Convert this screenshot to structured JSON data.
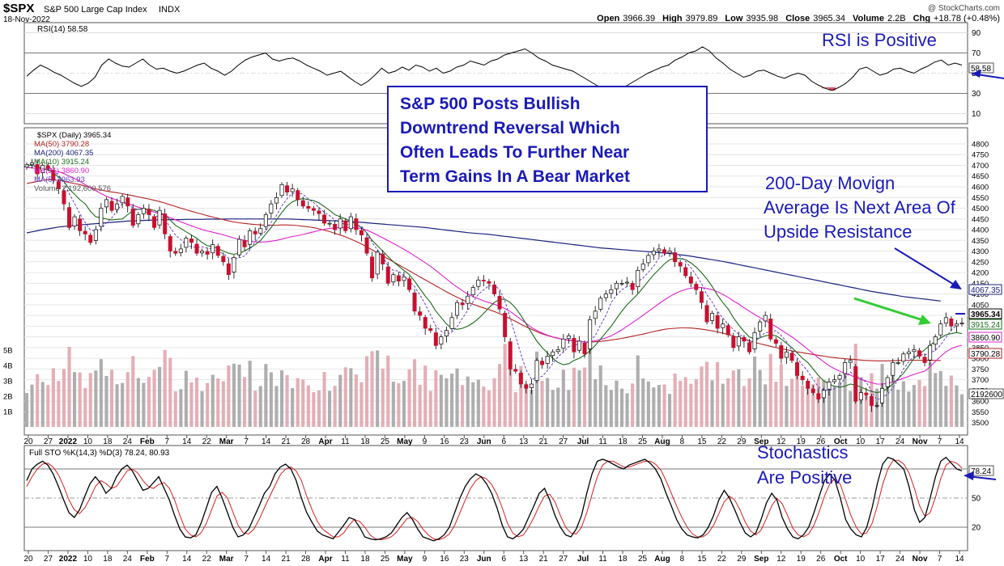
{
  "header": {
    "symbol": "$SPX",
    "name": "S&P 500 Large Cap Index",
    "exchange": "INDX",
    "date": "18-Nov-2022",
    "open_label": "Open",
    "open": "3966.39",
    "high_label": "High",
    "high": "3979.89",
    "low_label": "Low",
    "low": "3935.98",
    "close_label": "Close",
    "close": "3965.34",
    "volume_label": "Volume",
    "volume": "2.2B",
    "chg_label": "Chg",
    "chg": "+18.78 (+0.48%)",
    "watermark": "@ StockCharts.com"
  },
  "colors": {
    "up": "#ffffff",
    "down": "#c8102e",
    "ma50": "#b22222",
    "ma200": "#1a237e",
    "ma10": "#1b6b1b",
    "ma21": "#e020d0",
    "ma5": "#6a3fc7",
    "annotation": "#1a1ab8",
    "green_arrow": "#33cc33",
    "vol_up": "#a0a0a0",
    "vol_down": "#e0a0a8"
  },
  "rsi": {
    "label": "RSI(14) 58.58",
    "last": "58.58",
    "ticks": [
      "90",
      "70",
      "50",
      "30",
      "10"
    ],
    "levels": [
      90,
      70,
      50,
      30,
      10
    ],
    "values": [
      47,
      53,
      58,
      55,
      51,
      48,
      44,
      40,
      37,
      40,
      46,
      58,
      64,
      60,
      57,
      56,
      60,
      64,
      58,
      54,
      55,
      52,
      50,
      52,
      55,
      58,
      60,
      55,
      52,
      48,
      52,
      58,
      63,
      66,
      68,
      70,
      64,
      62,
      64,
      65,
      62,
      58,
      55,
      52,
      48,
      50,
      52,
      47,
      42,
      38,
      42,
      48,
      55,
      50,
      52,
      56,
      53,
      58,
      56,
      52,
      55,
      50,
      52,
      56,
      58,
      62,
      60,
      58,
      62,
      64,
      68,
      70,
      72,
      74,
      70,
      65,
      62,
      58,
      56,
      54,
      52,
      48,
      44,
      40,
      36,
      32,
      30,
      34,
      38,
      42,
      46,
      50,
      53,
      56,
      58,
      63,
      66,
      70,
      72,
      76,
      72,
      65,
      60,
      54,
      50,
      46,
      48,
      52,
      53,
      50,
      47,
      45,
      48,
      50,
      48,
      42,
      38,
      35,
      33,
      36,
      40,
      46,
      54,
      56,
      52,
      48,
      50,
      54,
      55,
      52,
      50,
      54,
      57,
      61,
      63,
      58,
      60,
      58
    ]
  },
  "price_panel": {
    "legend": [
      "$SPX (Daily) 3965.34",
      "MA(50) 3790.28",
      "MA(200) 4067.35",
      "MA(10) 3915.24",
      "MA(21) 3860.90",
      "MA(5) 3963.93",
      "Volume 2,192,600,576"
    ],
    "price_ticks": [
      "4800",
      "4750",
      "4700",
      "4650",
      "4600",
      "4550",
      "4500",
      "4450",
      "4400",
      "4350",
      "4300",
      "4250",
      "4200",
      "4150",
      "4100",
      "4050",
      "4000",
      "3950",
      "3900",
      "3850",
      "3800",
      "3750",
      "3700",
      "3650",
      "3600",
      "3550",
      "3500"
    ],
    "volume_ticks": [
      "5B",
      "4B",
      "3B",
      "2B",
      "1B"
    ],
    "value_labels": [
      "4067.35",
      "3965.34",
      "3915.24",
      "3860.90",
      "3790.28",
      "2192600"
    ]
  },
  "chart_data": {
    "type": "candlestick",
    "title": "$SPX S&P 500 Large Cap Index INDX (Daily)",
    "ylim": [
      3480,
      4830
    ],
    "volume_ylim_billions": [
      0,
      6.2
    ],
    "x_tick_labels": [
      "20",
      "27",
      "2022",
      "10",
      "18",
      "24",
      "Feb",
      "7",
      "14",
      "22",
      "Mar",
      "7",
      "14",
      "21",
      "28",
      "Apr",
      "11",
      "18",
      "25",
      "May",
      "9",
      "16",
      "23",
      "Jun",
      "6",
      "13",
      "21",
      "27",
      "Jul",
      "11",
      "18",
      "25",
      "Aug",
      "8",
      "15",
      "22",
      "29",
      "Sep",
      "12",
      "19",
      "26",
      "Oct",
      "10",
      "17",
      "24",
      "Nov",
      "7",
      "14"
    ],
    "close": [
      4702,
      4712,
      4660,
      4700,
      4685,
      4630,
      4590,
      4520,
      4410,
      4460,
      4395,
      4380,
      4340,
      4400,
      4500,
      4540,
      4490,
      4520,
      4555,
      4510,
      4420,
      4470,
      4500,
      4470,
      4410,
      4490,
      4380,
      4300,
      4290,
      4310,
      4360,
      4340,
      4290,
      4300,
      4285,
      4330,
      4280,
      4250,
      4190,
      4270,
      4355,
      4320,
      4395,
      4380,
      4405,
      4470,
      4520,
      4550,
      4610,
      4575,
      4590,
      4540,
      4510,
      4500,
      4490,
      4475,
      4430,
      4430,
      4400,
      4450,
      4395,
      4460,
      4400,
      4375,
      4290,
      4175,
      4295,
      4240,
      4150,
      4190,
      4160,
      4180,
      4120,
      4020,
      4000,
      3940,
      3930,
      3860,
      3900,
      3930,
      3990,
      4060,
      4050,
      4090,
      4130,
      4165,
      4160,
      4150,
      4100,
      4030,
      3900,
      3750,
      3740,
      3680,
      3660,
      3680,
      3790,
      3770,
      3810,
      3830,
      3840,
      3890,
      3905,
      3830,
      3880,
      3820,
      3980,
      4020,
      4080,
      4100,
      4120,
      4150,
      4150,
      4155,
      4120,
      4210,
      4240,
      4280,
      4300,
      4310,
      4290,
      4300,
      4250,
      4230,
      4185,
      4150,
      4120,
      4060,
      3970,
      4010,
      3940,
      3960,
      3910,
      3850,
      3900,
      3880,
      3830,
      3920,
      3970,
      4000,
      3890,
      3870,
      3800,
      3830,
      3790,
      3720,
      3700,
      3660,
      3640,
      3610,
      3650,
      3690,
      3700,
      3720,
      3780,
      3790,
      3600,
      3640,
      3630,
      3580,
      3580,
      3660,
      3710,
      3780,
      3780,
      3820,
      3830,
      3840,
      3810,
      3780,
      3860,
      3900,
      3960,
      3990,
      3950,
      3960,
      3965
    ],
    "ma50": [
      4615,
      4620,
      4625,
      4630,
      4633,
      4632,
      4630,
      4626,
      4620,
      4615,
      4610,
      4603,
      4596,
      4590,
      4585,
      4580,
      4576,
      4572,
      4568,
      4563,
      4558,
      4553,
      4548,
      4543,
      4537,
      4531,
      4524,
      4516,
      4508,
      4500,
      4493,
      4486,
      4479,
      4472,
      4465,
      4459,
      4453,
      4447,
      4441,
      4436,
      4432,
      4429,
      4426,
      4424,
      4422,
      4421,
      4421,
      4421,
      4422,
      4422,
      4421,
      4419,
      4416,
      4413,
      4409,
      4404,
      4398,
      4391,
      4383,
      4375,
      4366,
      4356,
      4345,
      4333,
      4320,
      4306,
      4292,
      4278,
      4264,
      4250,
      4236,
      4222,
      4208,
      4194,
      4180,
      4166,
      4152,
      4138,
      4124,
      4110,
      4097,
      4085,
      4073,
      4062,
      4052,
      4043,
      4035,
      4027,
      4018,
      4008,
      3997,
      3985,
      3972,
      3959,
      3947,
      3935,
      3924,
      3914,
      3906,
      3899,
      3893,
      3888,
      3884,
      3881,
      3878,
      3876,
      3876,
      3877,
      3879,
      3882,
      3885,
      3889,
      3893,
      3898,
      3903,
      3908,
      3913,
      3919,
      3925,
      3930,
      3935,
      3938,
      3940,
      3942,
      3942,
      3941,
      3939,
      3936,
      3932,
      3928,
      3923,
      3917,
      3911,
      3904,
      3897,
      3890,
      3882,
      3875,
      3868,
      3862,
      3856,
      3850,
      3845,
      3840,
      3835,
      3830,
      3826,
      3822,
      3818,
      3814,
      3810,
      3806,
      3803,
      3800,
      3798,
      3796,
      3794,
      3792,
      3790,
      3789,
      3788,
      3788,
      3788,
      3789,
      3790,
      3791,
      3791,
      3791,
      3791,
      3791,
      3790,
      3790,
      3790
    ],
    "ma200": [
      4385,
      4390,
      4395,
      4400,
      4404,
      4408,
      4412,
      4415,
      4418,
      4420,
      4422,
      4424,
      4426,
      4428,
      4430,
      4432,
      4434,
      4436,
      4438,
      4440,
      4441,
      4442,
      4443,
      4444,
      4445,
      4446,
      4446,
      4447,
      4447,
      4447,
      4448,
      4448,
      4448,
      4448,
      4449,
      4449,
      4449,
      4449,
      4450,
      4450,
      4450,
      4450,
      4450,
      4450,
      4450,
      4450,
      4450,
      4450,
      4450,
      4450,
      4449,
      4448,
      4447,
      4446,
      4445,
      4444,
      4443,
      4442,
      4441,
      4440,
      4439,
      4438,
      4436,
      4434,
      4432,
      4430,
      4428,
      4426,
      4424,
      4422,
      4420,
      4418,
      4416,
      4414,
      4412,
      4410,
      4407,
      4404,
      4401,
      4398,
      4395,
      4392,
      4389,
      4386,
      4384,
      4382,
      4380,
      4378,
      4375,
      4372,
      4369,
      4366,
      4363,
      4360,
      4357,
      4354,
      4351,
      4348,
      4345,
      4342,
      4339,
      4336,
      4333,
      4330,
      4327,
      4324,
      4321,
      4318,
      4315,
      4313,
      4311,
      4309,
      4307,
      4305,
      4303,
      4301,
      4299,
      4297,
      4295,
      4293,
      4291,
      4289,
      4286,
      4283,
      4280,
      4276,
      4272,
      4268,
      4264,
      4260,
      4256,
      4252,
      4247,
      4242,
      4237,
      4232,
      4227,
      4222,
      4217,
      4212,
      4207,
      4202,
      4197,
      4192,
      4187,
      4182,
      4177,
      4172,
      4167,
      4162,
      4157,
      4152,
      4147,
      4142,
      4137,
      4132,
      4127,
      4122,
      4117,
      4112,
      4108,
      4104,
      4100,
      4096,
      4092,
      4088,
      4085,
      4082,
      4079,
      4076,
      4073,
      4070,
      4067
    ],
    "ma21": [
      4690,
      4688,
      4686,
      4683,
      4680,
      4676,
      4670,
      4662,
      4650,
      4638,
      4625,
      4610,
      4596,
      4582,
      4568,
      4556,
      4546,
      4537,
      4529,
      4521,
      4513,
      4505,
      4497,
      4490,
      4482,
      4475,
      4466,
      4456,
      4446,
      4436,
      4427,
      4418,
      4409,
      4401,
      4394,
      4388,
      4382,
      4376,
      4368,
      4361,
      4355,
      4350,
      4346,
      4343,
      4342,
      4343,
      4346,
      4350,
      4356,
      4362,
      4368,
      4372,
      4378,
      4384,
      4390,
      4396,
      4402,
      4406,
      4408,
      4409,
      4410,
      4410,
      4409,
      4405,
      4398,
      4387,
      4375,
      4362,
      4349,
      4336,
      4322,
      4308,
      4294,
      4278,
      4262,
      4246,
      4229,
      4210,
      4190,
      4170,
      4150,
      4132,
      4115,
      4100,
      4088,
      4078,
      4068,
      4060,
      4052,
      4043,
      4032,
      4018,
      4000,
      3982,
      3963,
      3944,
      3930,
      3918,
      3908,
      3900,
      3894,
      3888,
      3885,
      3882,
      3880,
      3876,
      3878,
      3882,
      3888,
      3895,
      3905,
      3918,
      3933,
      3950,
      3966,
      3983,
      4001,
      4019,
      4037,
      4055,
      4072,
      4088,
      4102,
      4113,
      4121,
      4127,
      4130,
      4130,
      4126,
      4120,
      4110,
      4098,
      4084,
      4068,
      4053,
      4036,
      4020,
      4004,
      3990,
      3976,
      3962,
      3948,
      3932,
      3916,
      3900,
      3882,
      3862,
      3842,
      3822,
      3802,
      3784,
      3766,
      3752,
      3740,
      3730,
      3722,
      3710,
      3702,
      3694,
      3686,
      3680,
      3680,
      3683,
      3690,
      3698,
      3707,
      3716,
      3725,
      3733,
      3740,
      3760,
      3785,
      3810,
      3830,
      3845,
      3855,
      3861
    ],
    "ma10": [
      4700,
      4700,
      4690,
      4685,
      4680,
      4665,
      4645,
      4625,
      4590,
      4565,
      4540,
      4520,
      4485,
      4460,
      4455,
      4450,
      4445,
      4448,
      4450,
      4470,
      4490,
      4495,
      4495,
      4495,
      4490,
      4478,
      4470,
      4445,
      4420,
      4405,
      4390,
      4375,
      4360,
      4340,
      4325,
      4320,
      4312,
      4300,
      4290,
      4285,
      4290,
      4300,
      4315,
      4330,
      4350,
      4380,
      4410,
      4445,
      4480,
      4510,
      4530,
      4540,
      4545,
      4540,
      4535,
      4525,
      4508,
      4490,
      4470,
      4460,
      4450,
      4440,
      4425,
      4410,
      4385,
      4350,
      4325,
      4300,
      4275,
      4250,
      4230,
      4210,
      4190,
      4160,
      4125,
      4090,
      4060,
      4020,
      3990,
      3960,
      3940,
      3935,
      3940,
      3950,
      3965,
      3985,
      4010,
      4035,
      4060,
      4075,
      4075,
      4060,
      4035,
      4000,
      3960,
      3920,
      3880,
      3850,
      3825,
      3800,
      3780,
      3770,
      3775,
      3790,
      3800,
      3815,
      3835,
      3860,
      3890,
      3920,
      3950,
      3985,
      4020,
      4050,
      4075,
      4100,
      4130,
      4160,
      4190,
      4215,
      4240,
      4260,
      4265,
      4265,
      4260,
      4245,
      4225,
      4200,
      4170,
      4135,
      4095,
      4060,
      4030,
      3990,
      3955,
      3925,
      3900,
      3890,
      3895,
      3905,
      3910,
      3905,
      3890,
      3870,
      3850,
      3825,
      3800,
      3780,
      3750,
      3720,
      3695,
      3680,
      3670,
      3665,
      3670,
      3680,
      3675,
      3665,
      3655,
      3645,
      3640,
      3645,
      3660,
      3680,
      3705,
      3730,
      3765,
      3800,
      3820,
      3840,
      3860,
      3880,
      3895,
      3910,
      3915,
      3920,
      3915
    ],
    "stochastic": {
      "label": "Full STO %K(14,3) %D(3) 78.24, 80.93",
      "k_last": "78.24",
      "d_last": "80.93",
      "ticks": [
        "80",
        "50",
        "20"
      ],
      "levels": [
        80,
        50,
        20
      ],
      "k": [
        68,
        80,
        85,
        88,
        84,
        75,
        62,
        48,
        35,
        30,
        38,
        52,
        65,
        72,
        65,
        55,
        60,
        72,
        80,
        84,
        78,
        68,
        58,
        60,
        66,
        72,
        60,
        48,
        32,
        18,
        10,
        9,
        12,
        24,
        40,
        56,
        62,
        50,
        35,
        20,
        10,
        12,
        18,
        30,
        42,
        55,
        62,
        75,
        82,
        85,
        80,
        68,
        50,
        35,
        25,
        16,
        12,
        10,
        8,
        15,
        22,
        30,
        28,
        20,
        10,
        8,
        7,
        8,
        10,
        14,
        22,
        30,
        35,
        28,
        18,
        10,
        8,
        6,
        8,
        12,
        20,
        35,
        50,
        62,
        70,
        75,
        72,
        65,
        55,
        40,
        22,
        10,
        8,
        12,
        18,
        30,
        42,
        55,
        60,
        48,
        32,
        20,
        12,
        10,
        18,
        32,
        55,
        75,
        88,
        90,
        88,
        85,
        82,
        80,
        84,
        86,
        88,
        90,
        86,
        80,
        70,
        55,
        42,
        28,
        18,
        12,
        10,
        9,
        12,
        20,
        32,
        48,
        58,
        50,
        38,
        25,
        14,
        10,
        14,
        28,
        45,
        55,
        48,
        30,
        18,
        10,
        8,
        12,
        20,
        35,
        52,
        68,
        75,
        68,
        50,
        28,
        18,
        12,
        10,
        20,
        40,
        65,
        85,
        92,
        90,
        85,
        80,
        62,
        38,
        25,
        30,
        50,
        72,
        88,
        92,
        86,
        80,
        78
      ],
      "d": [
        62,
        72,
        80,
        85,
        86,
        82,
        74,
        62,
        48,
        38,
        34,
        40,
        50,
        62,
        68,
        65,
        60,
        62,
        70,
        78,
        80,
        76,
        68,
        62,
        60,
        64,
        66,
        60,
        48,
        32,
        18,
        12,
        10,
        14,
        24,
        38,
        52,
        56,
        50,
        36,
        22,
        14,
        13,
        18,
        28,
        40,
        52,
        63,
        74,
        80,
        82,
        78,
        68,
        52,
        38,
        26,
        18,
        14,
        10,
        10,
        14,
        22,
        28,
        26,
        20,
        12,
        8,
        7,
        8,
        10,
        15,
        22,
        29,
        30,
        26,
        18,
        12,
        8,
        7,
        9,
        13,
        22,
        35,
        48,
        60,
        68,
        72,
        70,
        64,
        54,
        40,
        24,
        14,
        10,
        12,
        20,
        30,
        42,
        52,
        54,
        46,
        32,
        20,
        14,
        13,
        20,
        35,
        54,
        72,
        84,
        88,
        88,
        85,
        82,
        82,
        84,
        86,
        88,
        88,
        85,
        79,
        68,
        55,
        42,
        30,
        20,
        13,
        10,
        10,
        14,
        22,
        34,
        46,
        52,
        48,
        38,
        25,
        16,
        12,
        17,
        29,
        42,
        50,
        44,
        32,
        19,
        12,
        10,
        13,
        22,
        36,
        52,
        65,
        70,
        64,
        48,
        32,
        20,
        13,
        14,
        24,
        42,
        64,
        80,
        89,
        89,
        85,
        76,
        60,
        42,
        31,
        35,
        51,
        70,
        84,
        88,
        86,
        81
      ]
    },
    "annotations": {
      "rsi_note": "RSI is Positive",
      "box_note": [
        "S&P 500 Posts Bullish",
        "Downtrend Reversal Which",
        "Often Leads To Further Near",
        "Term Gains In A Bear Market"
      ],
      "ma_note": [
        "200-Day Movign",
        "Average Is Next Area Of",
        "Upside Resistance"
      ],
      "sto_note": [
        "Stochastics",
        "Are Positive"
      ]
    }
  }
}
